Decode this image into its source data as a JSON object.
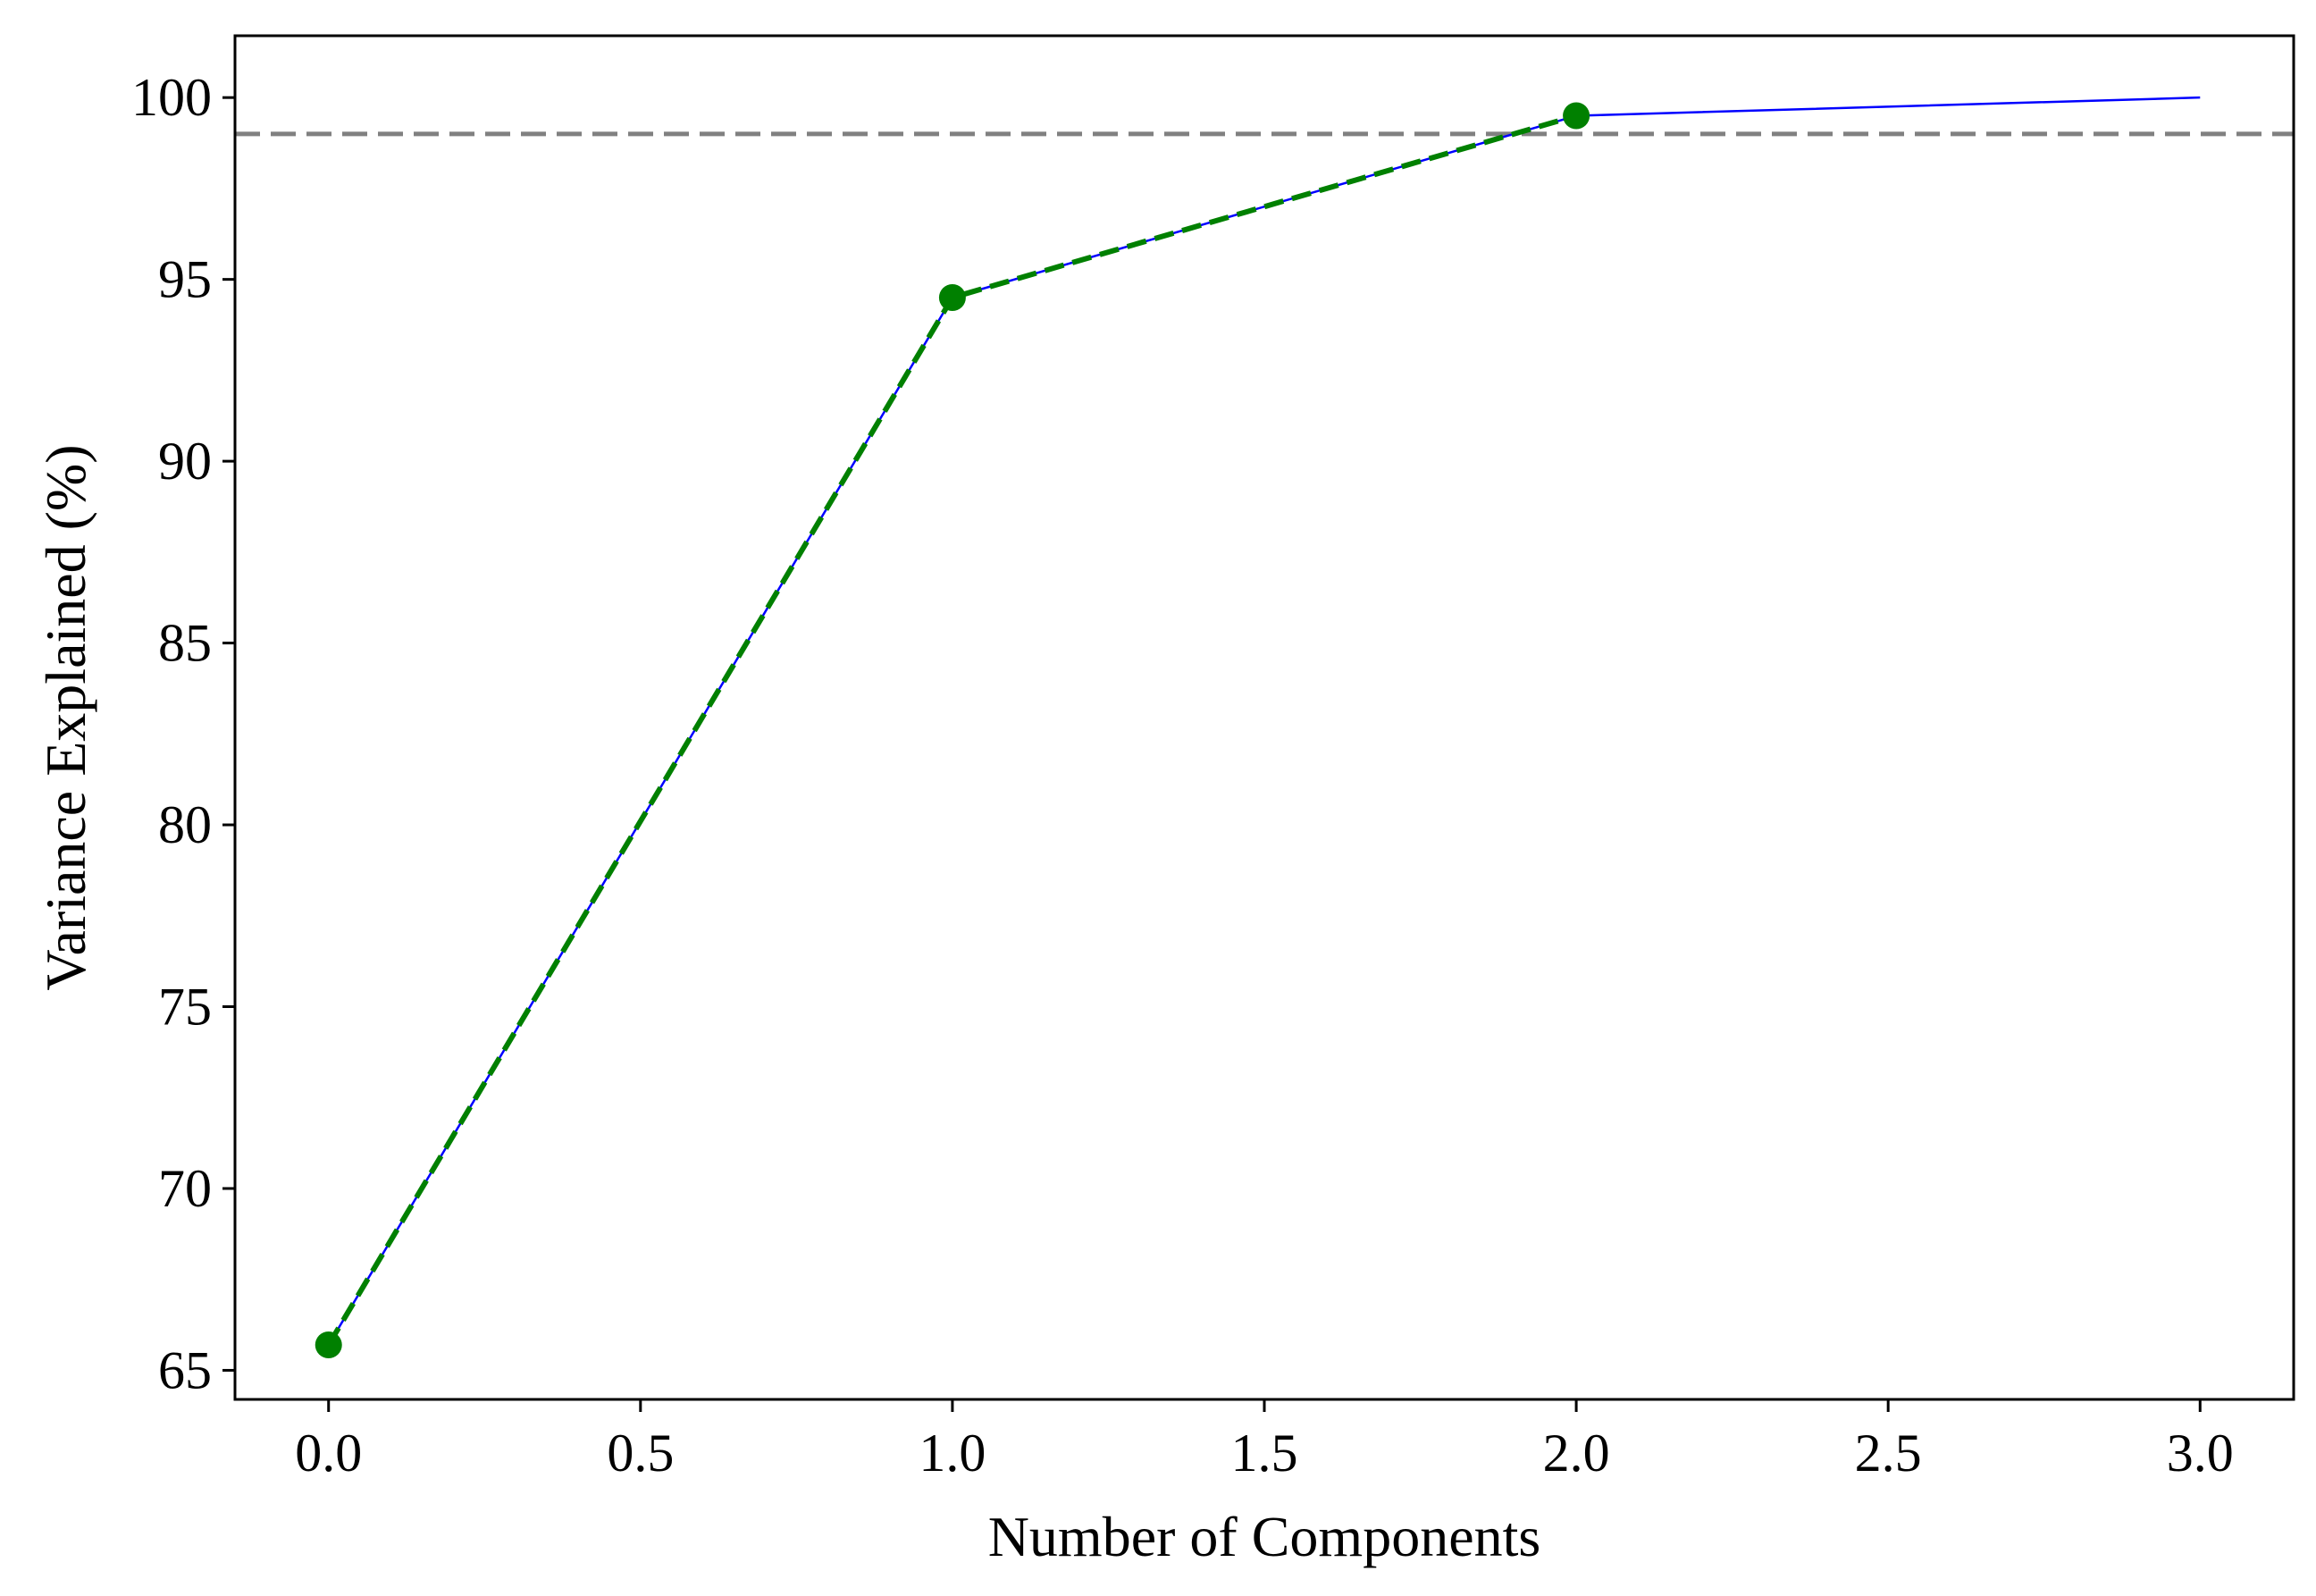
{
  "chart_data": {
    "type": "line",
    "title": "",
    "xlabel": "Number of Components",
    "ylabel": "Variance Explained (%)",
    "xlim": [
      -0.15,
      3.15
    ],
    "ylim": [
      64.2,
      101.7
    ],
    "xticks": [
      0.0,
      0.5,
      1.0,
      1.5,
      2.0,
      2.5,
      3.0
    ],
    "xtick_labels": [
      "0.0",
      "0.5",
      "1.0",
      "1.5",
      "2.0",
      "2.5",
      "3.0"
    ],
    "yticks": [
      65,
      70,
      75,
      80,
      85,
      90,
      95,
      100
    ],
    "ytick_labels": [
      "65",
      "70",
      "75",
      "80",
      "85",
      "90",
      "95",
      "100"
    ],
    "grid": false,
    "legend": "none",
    "series": [
      {
        "style": "solid",
        "color": "#0000ff",
        "marker": "none",
        "x": [
          0,
          1,
          2,
          3
        ],
        "y": [
          65.7,
          94.5,
          99.5,
          100.0
        ]
      },
      {
        "style": "dashed",
        "color": "#008000",
        "marker": "circle",
        "x": [
          0,
          1,
          2
        ],
        "y": [
          65.7,
          94.5,
          99.5
        ]
      }
    ],
    "reference_lines": [
      {
        "orientation": "horizontal",
        "y": 99,
        "style": "dashed",
        "color": "#808080"
      }
    ]
  }
}
